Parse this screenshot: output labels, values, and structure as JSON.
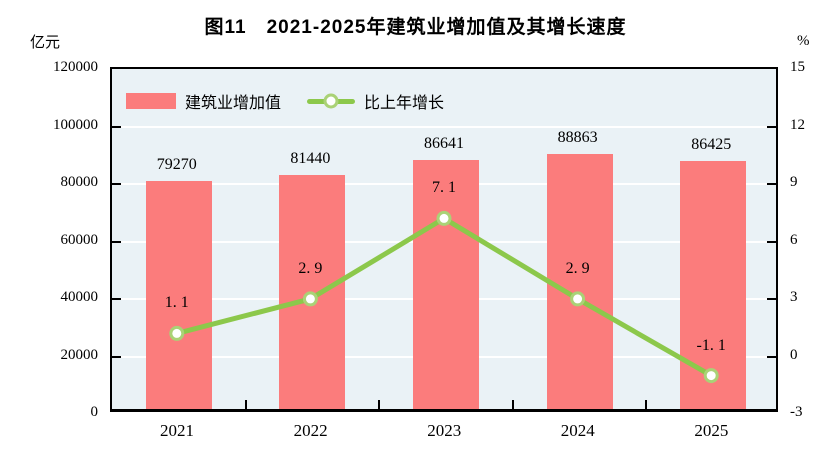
{
  "chart_data": {
    "type": "bar",
    "title": "图11　2021-2025年建筑业增加值及其增长速度",
    "categories": [
      "2021",
      "2022",
      "2023",
      "2024",
      "2025"
    ],
    "series": [
      {
        "name": "建筑业增加值",
        "type": "bar",
        "axis": "left",
        "values": [
          79270,
          81440,
          86641,
          88863,
          86425
        ],
        "labels": [
          "79270",
          "81440",
          "86641",
          "88863",
          "86425"
        ],
        "color": "#fb7c7c"
      },
      {
        "name": "比上年增长",
        "type": "line",
        "axis": "right",
        "values": [
          1.1,
          2.9,
          7.1,
          2.9,
          -1.1
        ],
        "labels": [
          "1. 1",
          "2. 9",
          "7. 1",
          "2. 9",
          "-1. 1"
        ],
        "color": "#8cc84b",
        "marker_ring_color": "#aad276",
        "marker_fill": "#ffffff"
      }
    ],
    "left_axis": {
      "unit": "亿元",
      "min": 0,
      "max": 120000,
      "ticks": [
        "0",
        "20000",
        "40000",
        "60000",
        "80000",
        "100000",
        "120000"
      ]
    },
    "right_axis": {
      "unit": "%",
      "min": -3,
      "max": 15,
      "ticks": [
        "-3",
        "0",
        "3",
        "6",
        "9",
        "12",
        "15"
      ]
    },
    "grid": true,
    "gridline_color": "#ffffff",
    "plot_background": "#eaf2f6",
    "legend_position": "top-left-inside"
  }
}
